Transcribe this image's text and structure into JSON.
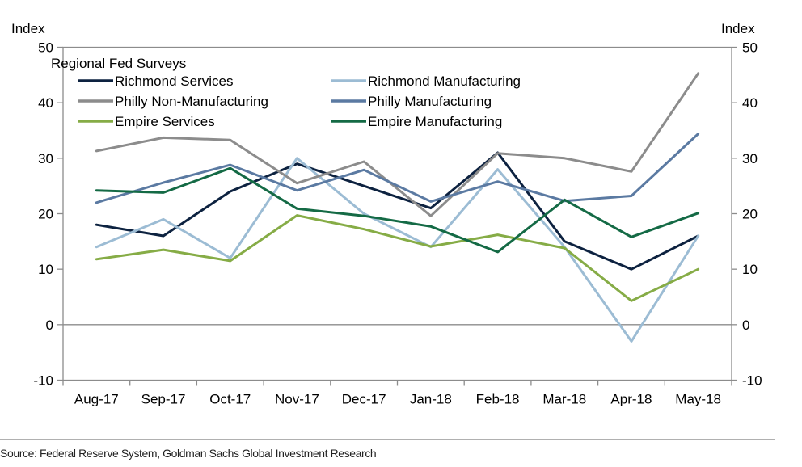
{
  "source_note": "Source: Federal Reserve System, Goldman Sachs Global Investment Research",
  "chart_data": {
    "type": "line",
    "title": "",
    "legend_title": "Regional Fed Surveys",
    "legend_position": "top-left",
    "ylabel_left": "Index",
    "ylabel_right": "Index",
    "xlabel": "",
    "ylim": [
      -10,
      50
    ],
    "yticks": [
      -10,
      0,
      10,
      20,
      30,
      40,
      50
    ],
    "grid": false,
    "categories": [
      "Aug-17",
      "Sep-17",
      "Oct-17",
      "Nov-17",
      "Dec-17",
      "Jan-18",
      "Feb-18",
      "Mar-18",
      "Apr-18",
      "May-18"
    ],
    "series": [
      {
        "name": "Richmond Services",
        "color": "#0d2240",
        "values": [
          18,
          16,
          24,
          29,
          25,
          21,
          31,
          15,
          10,
          16
        ]
      },
      {
        "name": "Richmond Manufacturing",
        "color": "#9cbcd4",
        "values": [
          14,
          19,
          12,
          30,
          20,
          14,
          28,
          14,
          -3,
          16
        ]
      },
      {
        "name": "Philly Non-Manufacturing",
        "color": "#8c8c8c",
        "values": [
          31.3,
          33.7,
          33.3,
          25.5,
          29.4,
          19.6,
          30.9,
          30.0,
          27.6,
          45.3
        ]
      },
      {
        "name": "Philly Manufacturing",
        "color": "#5b7aa2",
        "values": [
          22.0,
          25.6,
          28.8,
          24.2,
          27.9,
          22.2,
          25.8,
          22.3,
          23.2,
          34.4
        ]
      },
      {
        "name": "Empire Services",
        "color": "#86ac46",
        "values": [
          11.8,
          13.5,
          11.5,
          19.7,
          17.2,
          14.1,
          16.2,
          13.8,
          4.3,
          10.0
        ]
      },
      {
        "name": "Empire Manufacturing",
        "color": "#146a45",
        "values": [
          24.2,
          23.8,
          28.2,
          20.9,
          19.6,
          17.7,
          13.1,
          22.5,
          15.8,
          20.1
        ]
      }
    ]
  }
}
